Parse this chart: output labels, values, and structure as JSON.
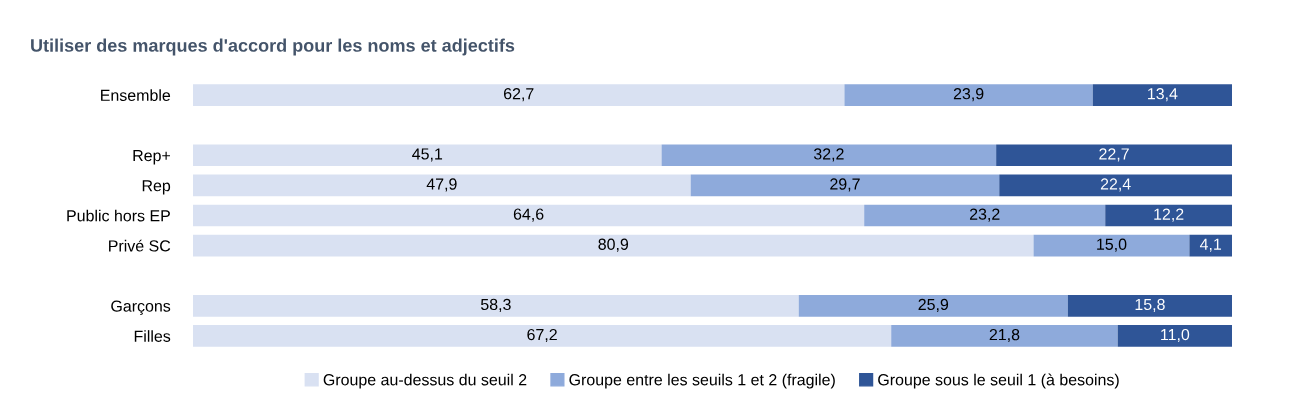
{
  "chart_data": {
    "type": "bar",
    "orientation": "horizontal",
    "stacked": true,
    "title": "Utiliser des marques d'accord pour les noms et adjectifs",
    "categories": [
      "Ensemble",
      null,
      "Rep+",
      "Rep",
      "Public hors EP",
      "Privé SC",
      null,
      "Garçons",
      "Filles"
    ],
    "series": [
      {
        "name": "Groupe au-dessus du seuil 2",
        "color": "#d9e1f2",
        "values": [
          62.7,
          null,
          45.1,
          47.9,
          64.6,
          80.9,
          null,
          58.3,
          67.2
        ],
        "value_labels": [
          "62,7",
          null,
          "45,1",
          "47,9",
          "64,6",
          "80,9",
          null,
          "58,3",
          "67,2"
        ]
      },
      {
        "name": "Groupe entre les seuils 1 et 2 (fragile)",
        "color": "#8eaadb",
        "values": [
          23.9,
          null,
          32.2,
          29.7,
          23.2,
          15.0,
          null,
          25.9,
          21.8
        ],
        "value_labels": [
          "23,9",
          null,
          "32,2",
          "29,7",
          "23,2",
          "15,0",
          null,
          "25,9",
          "21,8"
        ]
      },
      {
        "name": "Groupe sous le seuil 1 (à besoins)",
        "color": "#2f5597",
        "values": [
          13.4,
          null,
          22.7,
          22.4,
          12.2,
          4.1,
          null,
          15.8,
          11.0
        ],
        "value_labels": [
          "13,4",
          null,
          "22,7",
          "22,4",
          "12,2",
          "4,1",
          null,
          "15,8",
          "11,0"
        ]
      }
    ],
    "legend": "bottom",
    "grid": false
  }
}
